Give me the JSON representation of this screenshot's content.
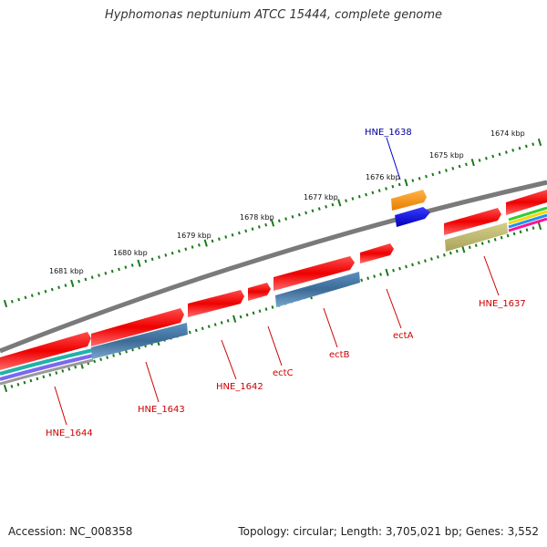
{
  "title": "Hyphomonas neptunium ATCC 15444, complete genome",
  "footer": {
    "accession": "Accession: NC_008358",
    "stats": "Topology: circular; Length: 3,705,021 bp; Genes: 3,552"
  },
  "ruler_labels": [
    "1674 kbp",
    "1675 kbp",
    "1676 kbp",
    "1677 kbp",
    "1678 kbp",
    "1679 kbp",
    "1680 kbp",
    "1681 kbp"
  ],
  "genes": [
    {
      "name": "HNE_1638",
      "color": "#0000cc",
      "label_color": "#000099"
    },
    {
      "name": "HNE_1637",
      "color": "#ff0000",
      "label_color": "#cc0000"
    },
    {
      "name": "ectA",
      "color": "#ff0000",
      "label_color": "#cc0000"
    },
    {
      "name": "ectB",
      "color": "#ff0000",
      "label_color": "#cc0000"
    },
    {
      "name": "ectC",
      "color": "#ff0000",
      "label_color": "#cc0000"
    },
    {
      "name": "HNE_1642",
      "color": "#ff0000",
      "label_color": "#cc0000"
    },
    {
      "name": "HNE_1643",
      "color": "#ff0000",
      "label_color": "#cc0000"
    },
    {
      "name": "HNE_1644",
      "color": "#ff0000",
      "label_color": "#cc0000"
    }
  ],
  "colors": {
    "backbone": "#777777",
    "tick_green": "#1a7a1a",
    "cds_red": "#ff0000",
    "steelblue": "#4682b4",
    "orange": "#ff8c00",
    "olive": "#bdb76b",
    "blue": "#0000ee"
  }
}
